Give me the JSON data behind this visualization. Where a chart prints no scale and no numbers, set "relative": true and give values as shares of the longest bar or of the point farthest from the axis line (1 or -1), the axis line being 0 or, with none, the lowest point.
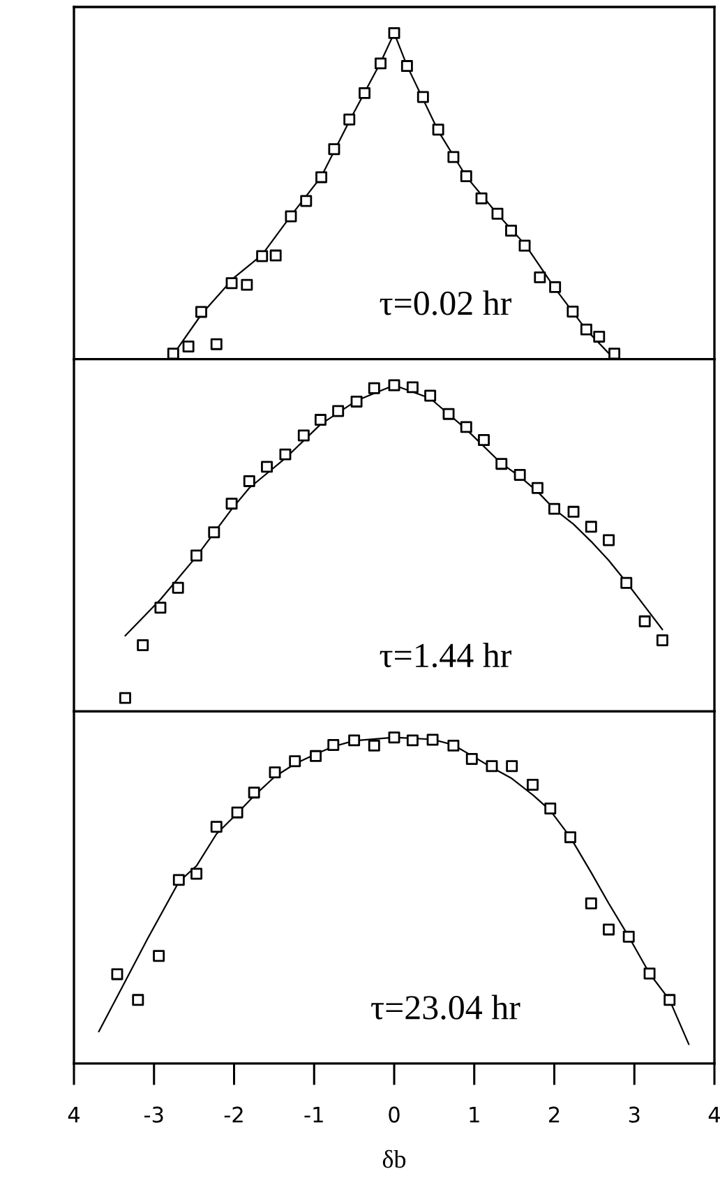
{
  "chart_data": [
    {
      "type": "scatter",
      "relative": true,
      "xlim": [
        -4,
        4
      ],
      "tick_labels": false,
      "annotations": [
        "τ=0.02 hr"
      ],
      "series": [
        {
          "marker": "square",
          "color": "#000000",
          "x": [
            -2.76,
            -2.57,
            -2.22,
            -2.41,
            -2.03,
            -1.84,
            -1.65,
            -1.48,
            -1.29,
            -1.1,
            -0.91,
            -0.75,
            -0.56,
            -0.37,
            -0.17,
            0.0,
            0.16,
            0.36,
            0.55,
            0.74,
            0.9,
            1.09,
            1.29,
            1.46,
            1.63,
            1.82,
            2.01,
            2.23,
            2.4,
            2.56,
            2.75
          ],
          "values": [
            0.017,
            0.039,
            0.046,
            0.145,
            0.233,
            0.228,
            0.316,
            0.318,
            0.438,
            0.485,
            0.558,
            0.644,
            0.735,
            0.816,
            0.907,
            1.0,
            0.899,
            0.804,
            0.704,
            0.62,
            0.561,
            0.493,
            0.446,
            0.394,
            0.348,
            0.251,
            0.221,
            0.146,
            0.091,
            0.069,
            0.017
          ]
        },
        {
          "type": "line",
          "color": "#000000",
          "x": [
            -2.8,
            -2.4,
            -2.0,
            -1.65,
            -1.29,
            -0.91,
            -0.56,
            -0.17,
            0.0,
            0.16,
            0.55,
            0.9,
            1.29,
            1.64,
            2.0,
            2.4,
            2.75
          ],
          "values": [
            0.0,
            0.14,
            0.25,
            0.32,
            0.44,
            0.56,
            0.73,
            0.91,
            1.0,
            0.9,
            0.7,
            0.56,
            0.445,
            0.35,
            0.22,
            0.09,
            0.0
          ]
        }
      ]
    },
    {
      "type": "scatter",
      "relative": true,
      "xlim": [
        -4,
        4
      ],
      "tick_labels": false,
      "annotations": [
        "τ=1.44 hr"
      ],
      "series": [
        {
          "marker": "square",
          "color": "#000000",
          "x": [
            -3.36,
            -3.14,
            -2.92,
            -2.7,
            -2.47,
            -2.25,
            -2.03,
            -1.81,
            -1.59,
            -1.36,
            -1.13,
            -0.92,
            -0.7,
            -0.47,
            -0.25,
            0.0,
            0.23,
            0.45,
            0.68,
            0.9,
            1.12,
            1.34,
            1.57,
            1.79,
            2.0,
            2.24,
            2.46,
            2.68,
            2.9,
            3.13,
            3.35
          ],
          "values": [
            0.041,
            0.203,
            0.318,
            0.379,
            0.478,
            0.549,
            0.637,
            0.706,
            0.75,
            0.788,
            0.846,
            0.894,
            0.921,
            0.95,
            0.991,
            1.0,
            0.994,
            0.968,
            0.912,
            0.872,
            0.832,
            0.759,
            0.725,
            0.685,
            0.621,
            0.612,
            0.566,
            0.525,
            0.394,
            0.276,
            0.218
          ]
        },
        {
          "type": "line",
          "color": "#000000",
          "x": [
            -3.36,
            -2.92,
            -2.47,
            -2.03,
            -1.81,
            -1.36,
            -0.92,
            -0.47,
            0.0,
            0.45,
            0.9,
            1.34,
            1.57,
            1.79,
            2.0,
            2.24,
            2.46,
            2.68,
            2.9,
            3.13,
            3.35
          ],
          "values": [
            0.232,
            0.343,
            0.475,
            0.62,
            0.685,
            0.776,
            0.88,
            0.953,
            1.0,
            0.96,
            0.865,
            0.76,
            0.72,
            0.674,
            0.62,
            0.574,
            0.521,
            0.463,
            0.396,
            0.322,
            0.251
          ]
        }
      ]
    },
    {
      "type": "scatter",
      "relative": true,
      "xlim": [
        -4,
        4
      ],
      "tick_labels": "x",
      "xlabel": "δb",
      "annotations": [
        "τ=23.04 hr"
      ],
      "xticks": [
        {
          "value": -4,
          "label": "4"
        },
        -3,
        -2,
        -1,
        0,
        1,
        2,
        3,
        4
      ],
      "series": [
        {
          "marker": "square",
          "color": "#000000",
          "x": [
            -3.46,
            -3.2,
            -2.94,
            -2.69,
            -2.47,
            -2.22,
            -1.96,
            -1.75,
            -1.49,
            -1.24,
            -0.98,
            -0.76,
            -0.5,
            -0.25,
            0.0,
            0.23,
            0.48,
            0.74,
            0.97,
            1.22,
            1.47,
            1.73,
            1.95,
            2.2,
            2.46,
            2.68,
            2.93,
            3.19,
            3.44
          ],
          "values": [
            0.274,
            0.195,
            0.33,
            0.563,
            0.582,
            0.726,
            0.77,
            0.831,
            0.893,
            0.927,
            0.943,
            0.977,
            0.991,
            0.975,
            1.0,
            0.991,
            0.993,
            0.975,
            0.934,
            0.912,
            0.912,
            0.855,
            0.782,
            0.694,
            0.491,
            0.411,
            0.389,
            0.276,
            0.195
          ]
        },
        {
          "type": "line",
          "color": "#000000",
          "x": [
            -3.69,
            -3.36,
            -3.08,
            -2.69,
            -2.47,
            -2.22,
            -1.96,
            -1.75,
            -1.49,
            -1.24,
            -0.98,
            -0.76,
            -0.5,
            0.0,
            0.48,
            0.74,
            0.97,
            1.22,
            1.47,
            1.73,
            1.95,
            2.2,
            2.46,
            2.68,
            2.93,
            3.19,
            3.44,
            3.68
          ],
          "values": [
            0.098,
            0.252,
            0.383,
            0.557,
            0.606,
            0.704,
            0.767,
            0.821,
            0.88,
            0.919,
            0.949,
            0.972,
            0.99,
            1.0,
            0.994,
            0.977,
            0.944,
            0.908,
            0.874,
            0.824,
            0.776,
            0.694,
            0.586,
            0.491,
            0.389,
            0.276,
            0.195,
            0.059
          ]
        }
      ]
    }
  ]
}
